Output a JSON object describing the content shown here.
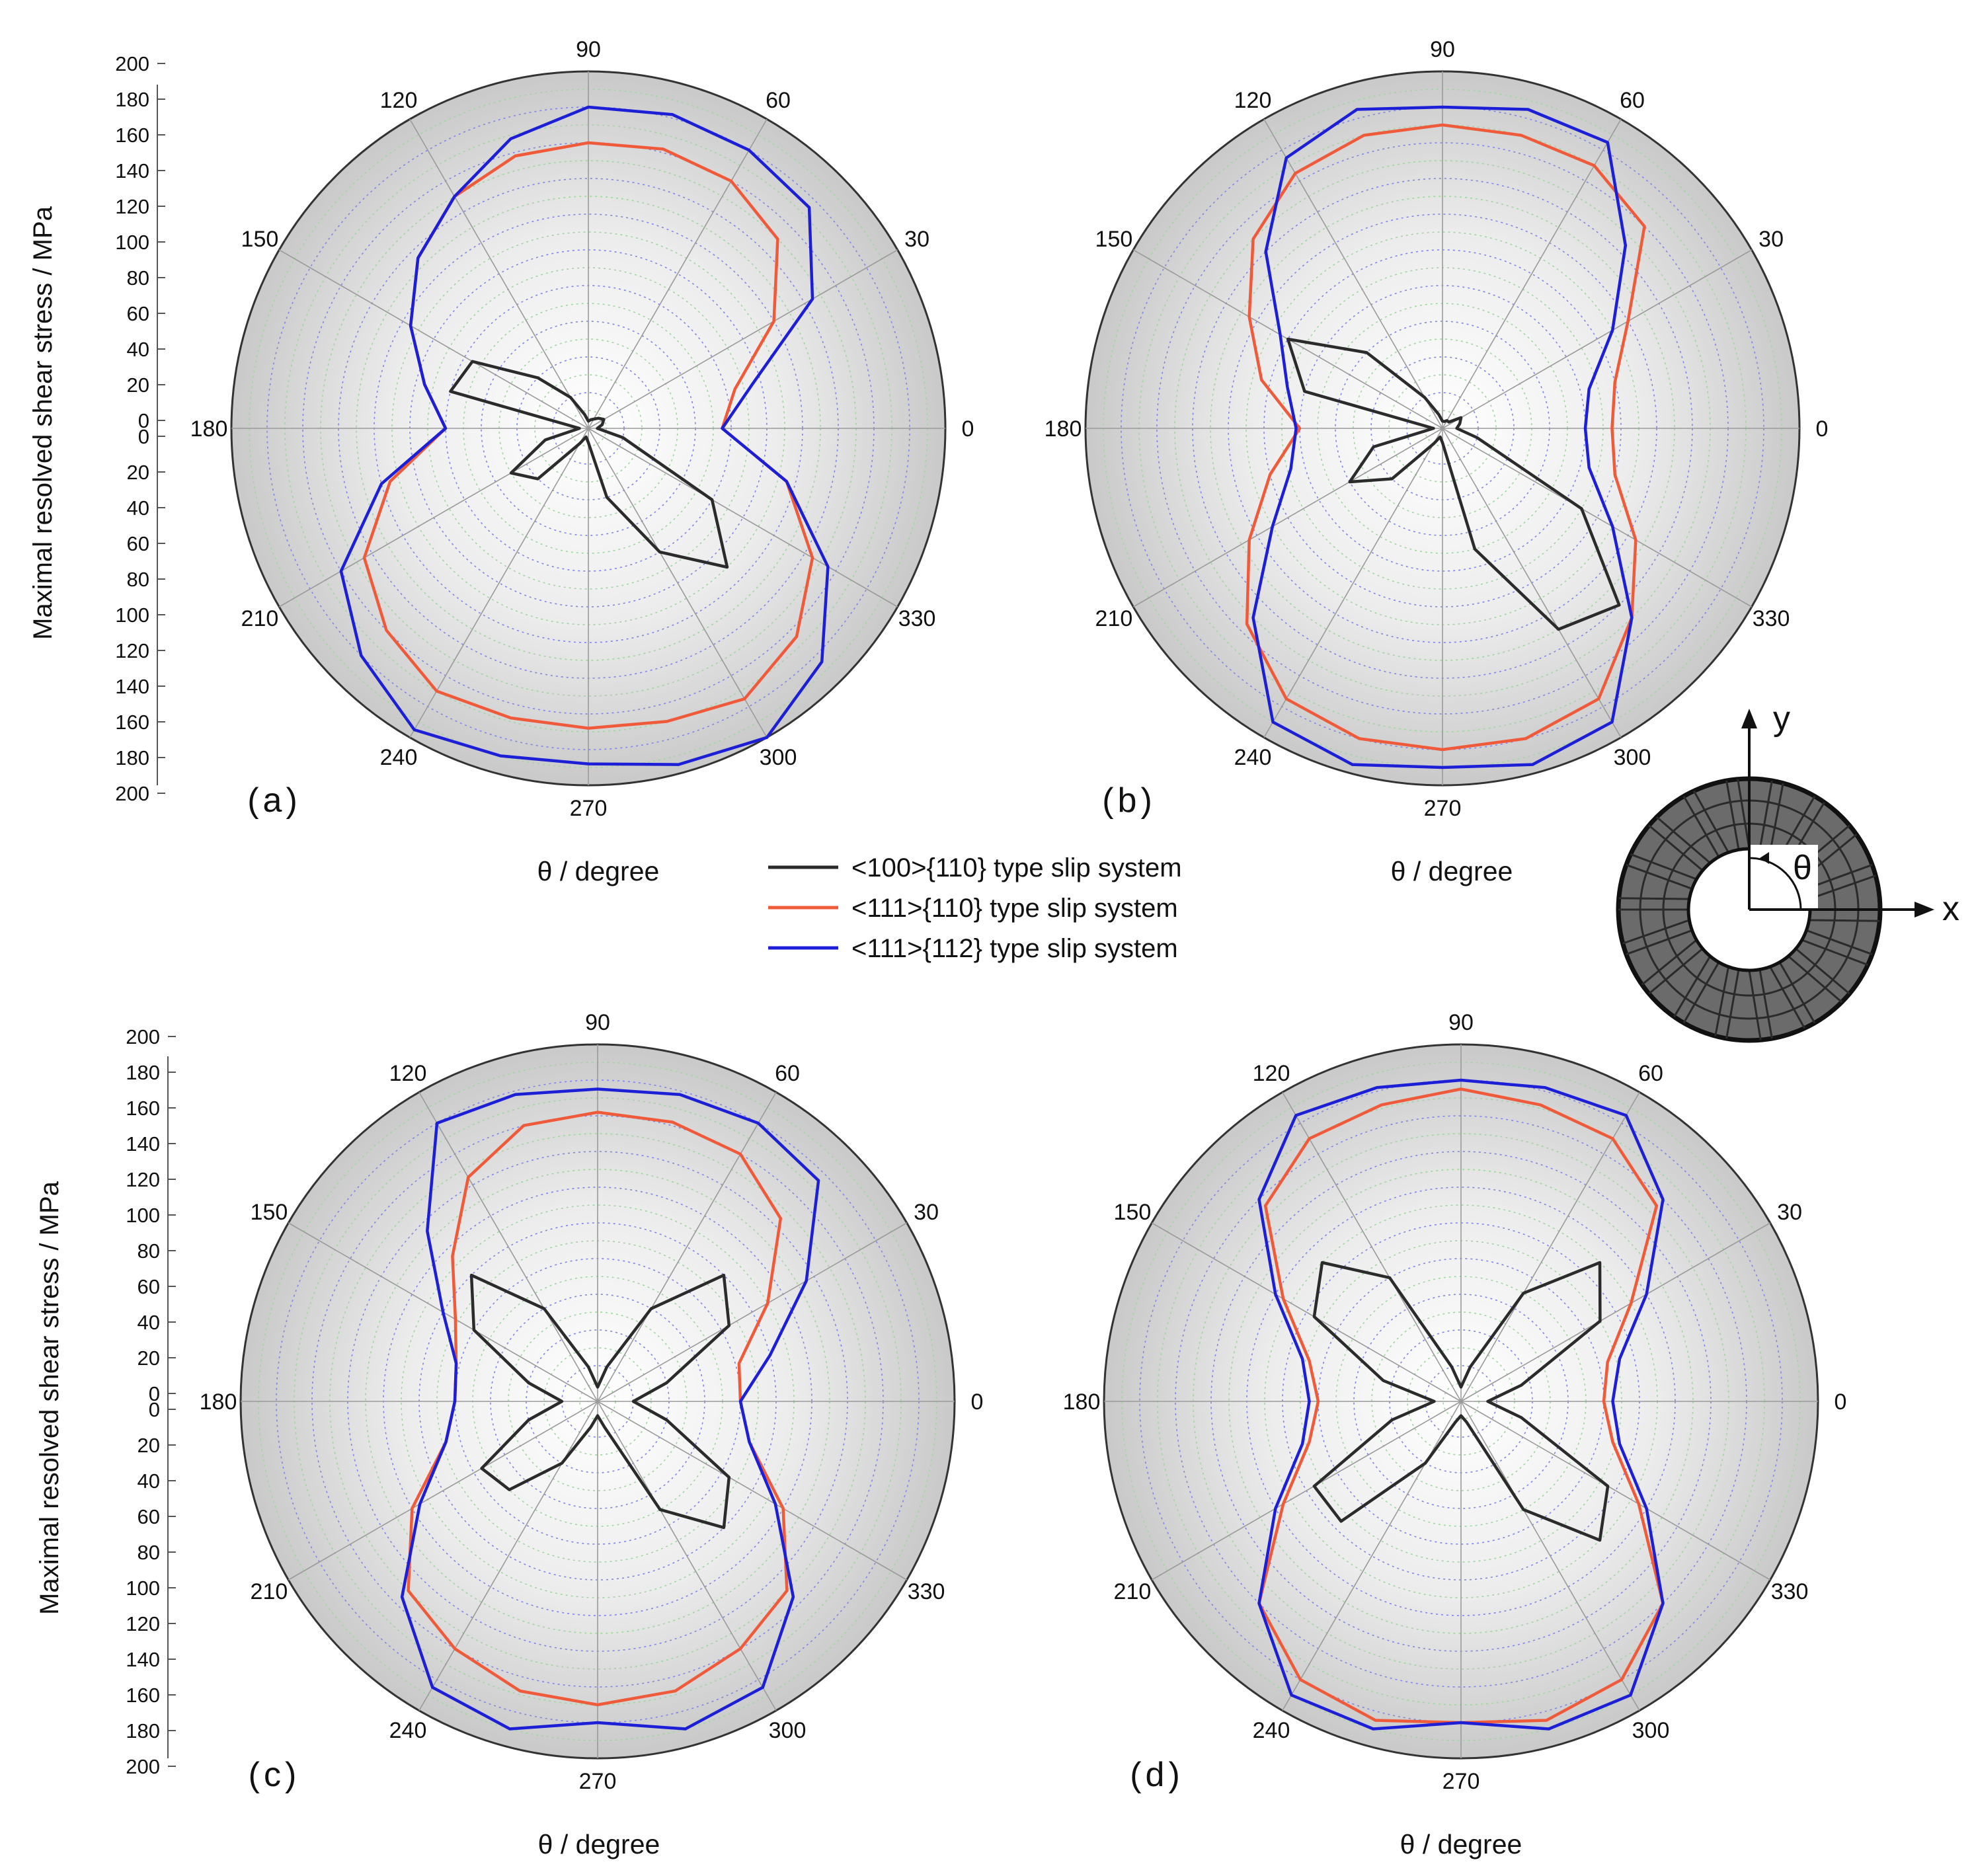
{
  "legend": [
    {
      "label": "<100>{110} type slip system",
      "color": "#2b2b2b"
    },
    {
      "label": "<111>{110} type slip system",
      "color": "#ef5b3a"
    },
    {
      "label": "<111>{112} type slip system",
      "color": "#1c1fd6"
    }
  ],
  "inset": {
    "x_label": "x",
    "y_label": "y",
    "angle_label": "θ"
  },
  "chart_data": [
    {
      "panel": "(a)",
      "type": "polar-line",
      "ylabel": "Maximal resolved shear stress / MPa",
      "xlabel": "θ / degree",
      "rlim": [
        0,
        200
      ],
      "r_ticks": [
        0,
        20,
        40,
        60,
        80,
        100,
        120,
        140,
        160,
        180,
        200
      ],
      "angle_ticks": [
        0,
        30,
        60,
        90,
        120,
        150,
        180,
        210,
        240,
        270,
        300,
        330
      ],
      "theta": [
        0,
        15,
        30,
        45,
        60,
        75,
        90,
        105,
        120,
        135,
        150,
        165,
        180,
        195,
        210,
        225,
        240,
        255,
        270,
        285,
        300,
        315,
        330,
        345
      ],
      "series": [
        {
          "name": "<100>{110} type slip system",
          "values": [
            5,
            8,
            10,
            8,
            6,
            5,
            4,
            8,
            20,
            40,
            75,
            80,
            5,
            25,
            50,
            40,
            10,
            5,
            8,
            40,
            80,
            110,
            80,
            20
          ]
        },
        {
          "name": "<111>{110} type slip system",
          "values": [
            75,
            85,
            120,
            150,
            160,
            162,
            160,
            158,
            150,
            135,
            115,
            95,
            80,
            115,
            145,
            160,
            170,
            168,
            168,
            170,
            175,
            165,
            145,
            115
          ]
        },
        {
          "name": "<111>{112} type slip system",
          "values": [
            75,
            95,
            145,
            175,
            180,
            182,
            180,
            168,
            150,
            135,
            115,
            95,
            80,
            120,
            160,
            180,
            195,
            190,
            188,
            195,
            200,
            185,
            155,
            115
          ]
        }
      ]
    },
    {
      "panel": "(b)",
      "type": "polar-line",
      "ylabel": "",
      "xlabel": "θ / degree",
      "rlim": [
        0,
        200
      ],
      "r_ticks": [
        0,
        20,
        40,
        60,
        80,
        100,
        120,
        140,
        160,
        180,
        200
      ],
      "angle_ticks": [
        0,
        30,
        60,
        90,
        120,
        150,
        180,
        210,
        240,
        270,
        300,
        330
      ],
      "theta": [
        0,
        15,
        30,
        45,
        60,
        75,
        90,
        105,
        120,
        135,
        150,
        165,
        180,
        195,
        210,
        225,
        240,
        255,
        270,
        285,
        300,
        315,
        330,
        345
      ],
      "series": [
        {
          "name": "<100>{110} type slip system",
          "values": [
            8,
            10,
            12,
            5,
            5,
            4,
            4,
            8,
            20,
            60,
            100,
            80,
            5,
            40,
            60,
            40,
            10,
            5,
            8,
            70,
            130,
            140,
            90,
            20
          ]
        },
        {
          "name": "<111>{110} type slip system",
          "values": [
            95,
            100,
            120,
            160,
            170,
            170,
            170,
            170,
            165,
            150,
            125,
            105,
            80,
            100,
            125,
            155,
            175,
            180,
            180,
            180,
            175,
            150,
            125,
            100
          ]
        },
        {
          "name": "<111>{112} type slip system",
          "values": [
            80,
            85,
            110,
            145,
            185,
            185,
            180,
            185,
            175,
            140,
            105,
            90,
            82,
            88,
            110,
            150,
            190,
            195,
            190,
            195,
            190,
            150,
            110,
            85
          ]
        }
      ]
    },
    {
      "panel": "(c)",
      "type": "polar-line",
      "ylabel": "Maximal resolved shear stress / MPa",
      "xlabel": "θ / degree",
      "rlim": [
        0,
        200
      ],
      "r_ticks": [
        0,
        20,
        40,
        60,
        80,
        100,
        120,
        140,
        160,
        180,
        200
      ],
      "angle_ticks": [
        0,
        30,
        60,
        90,
        120,
        150,
        180,
        210,
        240,
        270,
        300,
        330
      ],
      "theta": [
        0,
        15,
        30,
        45,
        60,
        75,
        90,
        105,
        120,
        135,
        150,
        165,
        180,
        195,
        210,
        225,
        240,
        255,
        270,
        285,
        300,
        315,
        330,
        345
      ],
      "series": [
        {
          "name": "<100>{110} type slip system",
          "values": [
            20,
            40,
            85,
            100,
            60,
            20,
            8,
            20,
            60,
            100,
            80,
            40,
            20,
            40,
            75,
            70,
            40,
            15,
            8,
            15,
            70,
            100,
            85,
            40
          ]
        },
        {
          "name": "<111>{110} type slip system",
          "values": [
            80,
            82,
            110,
            145,
            160,
            162,
            162,
            160,
            145,
            115,
            92,
            82,
            80,
            88,
            120,
            150,
            160,
            168,
            170,
            168,
            160,
            150,
            120,
            88
          ]
        },
        {
          "name": "<111>{112} type slip system",
          "values": [
            80,
            100,
            135,
            175,
            180,
            178,
            175,
            178,
            180,
            135,
            100,
            82,
            80,
            88,
            115,
            155,
            185,
            190,
            180,
            190,
            185,
            155,
            115,
            88
          ]
        }
      ]
    },
    {
      "panel": "(d)",
      "type": "polar-line",
      "ylabel": "",
      "xlabel": "θ / degree",
      "rlim": [
        0,
        200
      ],
      "r_ticks": [
        0,
        20,
        40,
        60,
        80,
        100,
        120,
        140,
        160,
        180,
        200
      ],
      "angle_ticks": [
        0,
        30,
        60,
        90,
        120,
        150,
        180,
        210,
        240,
        270,
        300,
        330
      ],
      "theta": [
        0,
        15,
        30,
        45,
        60,
        75,
        90,
        105,
        120,
        135,
        150,
        165,
        180,
        195,
        210,
        225,
        240,
        255,
        270,
        285,
        300,
        315,
        330,
        345
      ],
      "series": [
        {
          "name": "<100>{110} type slip system",
          "values": [
            15,
            35,
            90,
            110,
            70,
            20,
            8,
            20,
            80,
            110,
            95,
            45,
            15,
            40,
            95,
            95,
            40,
            12,
            8,
            12,
            70,
            110,
            95,
            35
          ]
        },
        {
          "name": "<111>{110} type slip system",
          "values": [
            80,
            85,
            110,
            155,
            170,
            172,
            175,
            172,
            170,
            155,
            115,
            88,
            80,
            88,
            115,
            160,
            180,
            185,
            180,
            185,
            180,
            160,
            115,
            88
          ]
        },
        {
          "name": "<111>{112} type slip system",
          "values": [
            85,
            92,
            120,
            160,
            185,
            182,
            180,
            182,
            185,
            160,
            120,
            92,
            85,
            92,
            120,
            160,
            190,
            190,
            180,
            190,
            190,
            160,
            120,
            92
          ]
        }
      ]
    }
  ]
}
